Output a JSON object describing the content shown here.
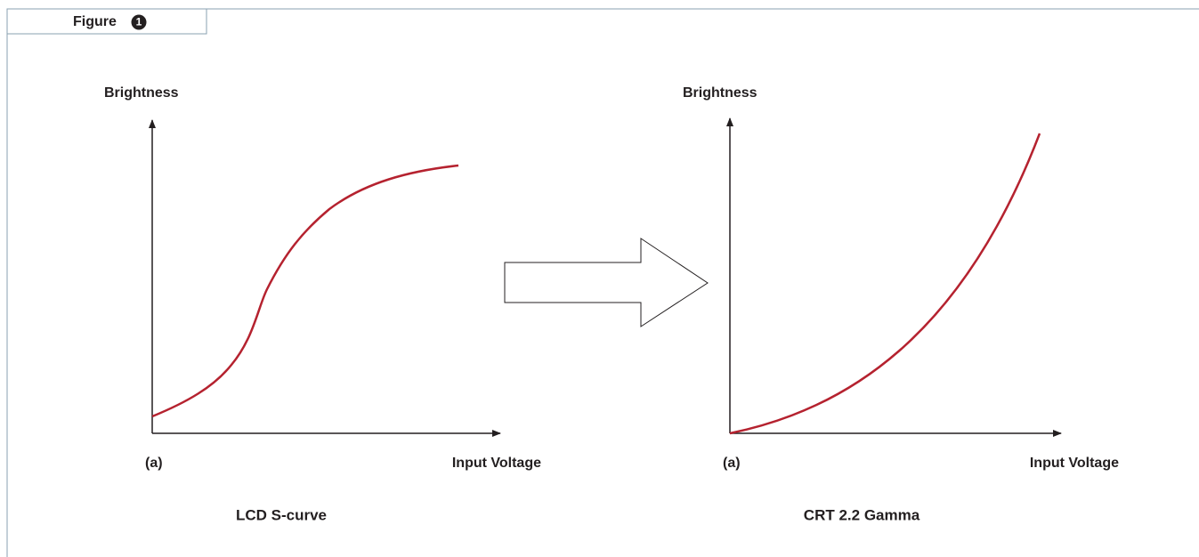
{
  "figure": {
    "label": "Figure",
    "number": "1"
  },
  "panels": [
    {
      "y_label": "Brightness",
      "x_label": "Input Voltage",
      "corner": "(a)",
      "caption": "LCD S-curve"
    },
    {
      "y_label": "Brightness",
      "x_label": "Input Voltage",
      "corner": "(a)",
      "caption": "CRT 2.2 Gamma"
    }
  ]
}
